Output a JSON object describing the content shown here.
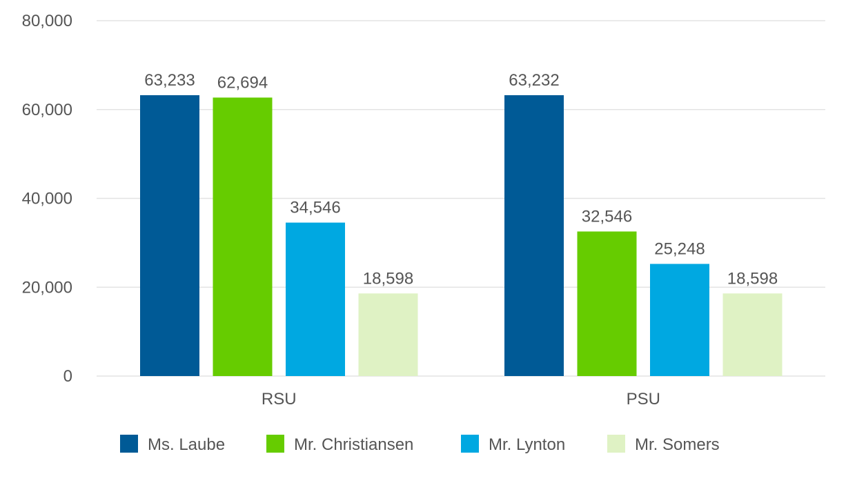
{
  "chart_data": {
    "type": "bar",
    "title": "",
    "xlabel": "",
    "ylabel": "",
    "categories": [
      "RSU",
      "PSU"
    ],
    "ylim": [
      0,
      80000
    ],
    "yticks": [
      0,
      20000,
      40000,
      60000,
      80000
    ],
    "ytick_labels": [
      "0",
      "20,000",
      "40,000",
      "60,000",
      "80,000"
    ],
    "grid": true,
    "legend_position": "bottom",
    "series": [
      {
        "name": "Ms. Laube",
        "color": "#005a96",
        "values": [
          63233,
          63232
        ],
        "labels": [
          "63,233",
          "63,232"
        ]
      },
      {
        "name": "Mr. Christiansen",
        "color": "#66cc00",
        "values": [
          62694,
          32546
        ],
        "labels": [
          "62,694",
          "32,546"
        ]
      },
      {
        "name": "Mr. Lynton",
        "color": "#00a8e1",
        "values": [
          34546,
          25248
        ],
        "labels": [
          "34,546",
          "25,248"
        ]
      },
      {
        "name": "Mr. Somers",
        "color": "#dff2c4",
        "values": [
          18598,
          18598
        ],
        "labels": [
          "18,598",
          "18,598"
        ]
      }
    ]
  }
}
